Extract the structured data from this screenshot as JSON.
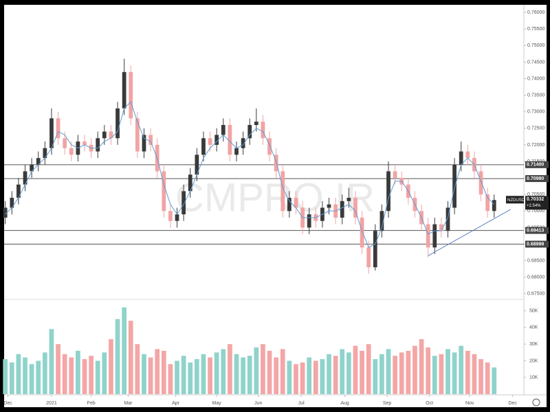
{
  "chart_data": {
    "type": "candlestick",
    "symbol": "NZDUSD",
    "watermark": "CMPRO.IR",
    "last_price": {
      "value": 0.70332,
      "label": "0.70332"
    },
    "change": {
      "value": 2.54,
      "label": "+2.54%"
    },
    "up_color": "#3a3a3a",
    "down_color": "#f2a3a3",
    "volume_up_color": "#8fd3cb",
    "volume_down_color": "#f4a6a6",
    "open": [
      0.698,
      0.701,
      0.704,
      0.708,
      0.712,
      0.714,
      0.716,
      0.719,
      0.728,
      0.722,
      0.719,
      0.717,
      0.721,
      0.72,
      0.718,
      0.722,
      0.724,
      0.722,
      0.731,
      0.742,
      0.728,
      0.718,
      0.723,
      0.72,
      0.712,
      0.7,
      0.697,
      0.699,
      0.706,
      0.711,
      0.717,
      0.722,
      0.72,
      0.723,
      0.726,
      0.717,
      0.719,
      0.722,
      0.726,
      0.727,
      0.722,
      0.717,
      0.712,
      0.7,
      0.704,
      0.701,
      0.695,
      0.699,
      0.697,
      0.701,
      0.702,
      0.698,
      0.703,
      0.704,
      0.698,
      0.689,
      0.683,
      0.694,
      0.7,
      0.712,
      0.71,
      0.708,
      0.704,
      0.7,
      0.696,
      0.689,
      0.696,
      0.694,
      0.701,
      0.714,
      0.718,
      0.716,
      0.712,
      0.705,
      0.7
    ],
    "high": [
      0.703,
      0.706,
      0.71,
      0.714,
      0.716,
      0.718,
      0.721,
      0.731,
      0.73,
      0.724,
      0.721,
      0.723,
      0.723,
      0.722,
      0.724,
      0.726,
      0.726,
      0.733,
      0.746,
      0.744,
      0.73,
      0.725,
      0.725,
      0.722,
      0.714,
      0.702,
      0.701,
      0.708,
      0.713,
      0.719,
      0.724,
      0.724,
      0.725,
      0.728,
      0.728,
      0.721,
      0.724,
      0.728,
      0.731,
      0.729,
      0.724,
      0.719,
      0.714,
      0.706,
      0.706,
      0.703,
      0.701,
      0.701,
      0.703,
      0.704,
      0.704,
      0.705,
      0.707,
      0.706,
      0.7,
      0.691,
      0.696,
      0.702,
      0.715,
      0.714,
      0.712,
      0.71,
      0.706,
      0.702,
      0.698,
      0.698,
      0.698,
      0.703,
      0.716,
      0.721,
      0.72,
      0.718,
      0.714,
      0.707,
      0.705
    ],
    "low": [
      0.696,
      0.699,
      0.702,
      0.706,
      0.71,
      0.712,
      0.714,
      0.717,
      0.72,
      0.717,
      0.715,
      0.715,
      0.718,
      0.716,
      0.716,
      0.72,
      0.72,
      0.72,
      0.729,
      0.726,
      0.716,
      0.716,
      0.718,
      0.71,
      0.698,
      0.695,
      0.695,
      0.697,
      0.704,
      0.709,
      0.715,
      0.718,
      0.718,
      0.721,
      0.715,
      0.715,
      0.717,
      0.72,
      0.724,
      0.72,
      0.715,
      0.71,
      0.698,
      0.698,
      0.699,
      0.693,
      0.693,
      0.695,
      0.695,
      0.699,
      0.696,
      0.696,
      0.701,
      0.696,
      0.687,
      0.681,
      0.682,
      0.692,
      0.698,
      0.708,
      0.706,
      0.702,
      0.698,
      0.694,
      0.686,
      0.687,
      0.692,
      0.692,
      0.699,
      0.712,
      0.714,
      0.71,
      0.703,
      0.698,
      0.698
    ],
    "close": [
      0.701,
      0.704,
      0.708,
      0.712,
      0.714,
      0.716,
      0.719,
      0.728,
      0.722,
      0.719,
      0.717,
      0.721,
      0.72,
      0.718,
      0.722,
      0.724,
      0.722,
      0.731,
      0.742,
      0.728,
      0.718,
      0.723,
      0.72,
      0.712,
      0.7,
      0.697,
      0.699,
      0.706,
      0.711,
      0.717,
      0.722,
      0.72,
      0.723,
      0.726,
      0.717,
      0.719,
      0.722,
      0.726,
      0.727,
      0.722,
      0.717,
      0.712,
      0.7,
      0.704,
      0.701,
      0.695,
      0.699,
      0.697,
      0.701,
      0.702,
      0.698,
      0.703,
      0.704,
      0.698,
      0.689,
      0.683,
      0.694,
      0.7,
      0.712,
      0.71,
      0.708,
      0.704,
      0.7,
      0.696,
      0.689,
      0.696,
      0.694,
      0.701,
      0.714,
      0.718,
      0.716,
      0.712,
      0.705,
      0.7,
      0.70332
    ],
    "volume": [
      21000,
      19000,
      24000,
      22000,
      18000,
      20000,
      25000,
      39000,
      30000,
      24000,
      22000,
      26000,
      21000,
      23000,
      20000,
      25000,
      33000,
      45000,
      52000,
      44000,
      30000,
      24000,
      22000,
      27000,
      26000,
      18000,
      20000,
      23000,
      19000,
      21000,
      24000,
      22000,
      25000,
      27000,
      30000,
      24000,
      22000,
      23000,
      28000,
      30000,
      26000,
      22000,
      27000,
      20000,
      18000,
      19000,
      22000,
      20000,
      21000,
      24000,
      23000,
      27000,
      25000,
      29000,
      26000,
      30000,
      21000,
      24000,
      27000,
      23000,
      25000,
      26000,
      29000,
      33000,
      28000,
      23000,
      24000,
      27000,
      25000,
      29000,
      26000,
      24000,
      21000,
      19000,
      16000
    ],
    "ma": {
      "color": "#5b9bd5",
      "values": [
        0.699,
        0.701,
        0.704,
        0.708,
        0.712,
        0.714,
        0.716,
        0.719,
        0.724,
        0.723,
        0.72,
        0.719,
        0.72,
        0.719,
        0.719,
        0.721,
        0.722,
        0.724,
        0.731,
        0.733,
        0.727,
        0.722,
        0.721,
        0.716,
        0.708,
        0.702,
        0.699,
        0.702,
        0.706,
        0.711,
        0.716,
        0.719,
        0.721,
        0.723,
        0.721,
        0.719,
        0.72,
        0.723,
        0.725,
        0.724,
        0.72,
        0.715,
        0.707,
        0.703,
        0.701,
        0.698,
        0.698,
        0.698,
        0.699,
        0.7,
        0.7,
        0.701,
        0.702,
        0.7,
        0.694,
        0.689,
        0.69,
        0.695,
        0.704,
        0.709,
        0.709,
        0.706,
        0.702,
        0.698,
        0.693,
        0.694,
        0.694,
        0.698,
        0.707,
        0.714,
        0.716,
        0.714,
        0.709,
        0.704,
        0.702
      ]
    },
    "levels": [
      {
        "value": 0.714,
        "label": "0.71400"
      },
      {
        "value": 0.7098,
        "label": "0.70980"
      },
      {
        "value": 0.69413,
        "label": "0.69413"
      },
      {
        "value": 0.68999,
        "label": "0.68999"
      }
    ],
    "trendline": {
      "color": "#5b7fbf",
      "x": [
        64,
        76.5
      ],
      "y": [
        0.6865,
        0.7005
      ]
    },
    "xlim": [
      -0.8,
      78.5
    ],
    "xticks": [
      {
        "value": 0.4,
        "label": "Dec"
      },
      {
        "value": 7,
        "label": "2021"
      },
      {
        "value": 13,
        "label": "Feb"
      },
      {
        "value": 18.6,
        "label": "Mar"
      },
      {
        "value": 25.8,
        "label": "Apr"
      },
      {
        "value": 32,
        "label": "May"
      },
      {
        "value": 38.3,
        "label": "Jun"
      },
      {
        "value": 44.8,
        "label": "Jul"
      },
      {
        "value": 51.4,
        "label": "Aug"
      },
      {
        "value": 57.8,
        "label": "Sep"
      },
      {
        "value": 64.2,
        "label": "Oct"
      },
      {
        "value": 70.3,
        "label": "Nov"
      },
      {
        "value": 76.8,
        "label": "Dec"
      }
    ],
    "ylim": [
      0.6733,
      0.7621
    ],
    "yticks": [
      {
        "value": 0.675,
        "label": "0.67500"
      },
      {
        "value": 0.68,
        "label": "0.68000"
      },
      {
        "value": 0.685,
        "label": "0.68500"
      },
      {
        "value": 0.69,
        "label": "0.69000"
      },
      {
        "value": 0.695,
        "label": "0.69500"
      },
      {
        "value": 0.7,
        "label": "0.70000"
      },
      {
        "value": 0.705,
        "label": "0.70500"
      },
      {
        "value": 0.71,
        "label": "0.71000"
      },
      {
        "value": 0.715,
        "label": "0.71500"
      },
      {
        "value": 0.72,
        "label": "0.72000"
      },
      {
        "value": 0.725,
        "label": "0.72500"
      },
      {
        "value": 0.73,
        "label": "0.73000"
      },
      {
        "value": 0.735,
        "label": "0.73500"
      },
      {
        "value": 0.74,
        "label": "0.74000"
      },
      {
        "value": 0.745,
        "label": "0.74500"
      },
      {
        "value": 0.75,
        "label": "0.75000"
      },
      {
        "value": 0.755,
        "label": "0.75500"
      },
      {
        "value": 0.76,
        "label": "0.76000"
      }
    ],
    "volume_ylim": [
      0,
      56000
    ],
    "volume_yticks": [
      {
        "value": 10000,
        "label": "10K"
      },
      {
        "value": 20000,
        "label": "20K"
      },
      {
        "value": 30000,
        "label": "30K"
      },
      {
        "value": 40000,
        "label": "40K"
      },
      {
        "value": 50000,
        "label": "50K"
      }
    ]
  }
}
